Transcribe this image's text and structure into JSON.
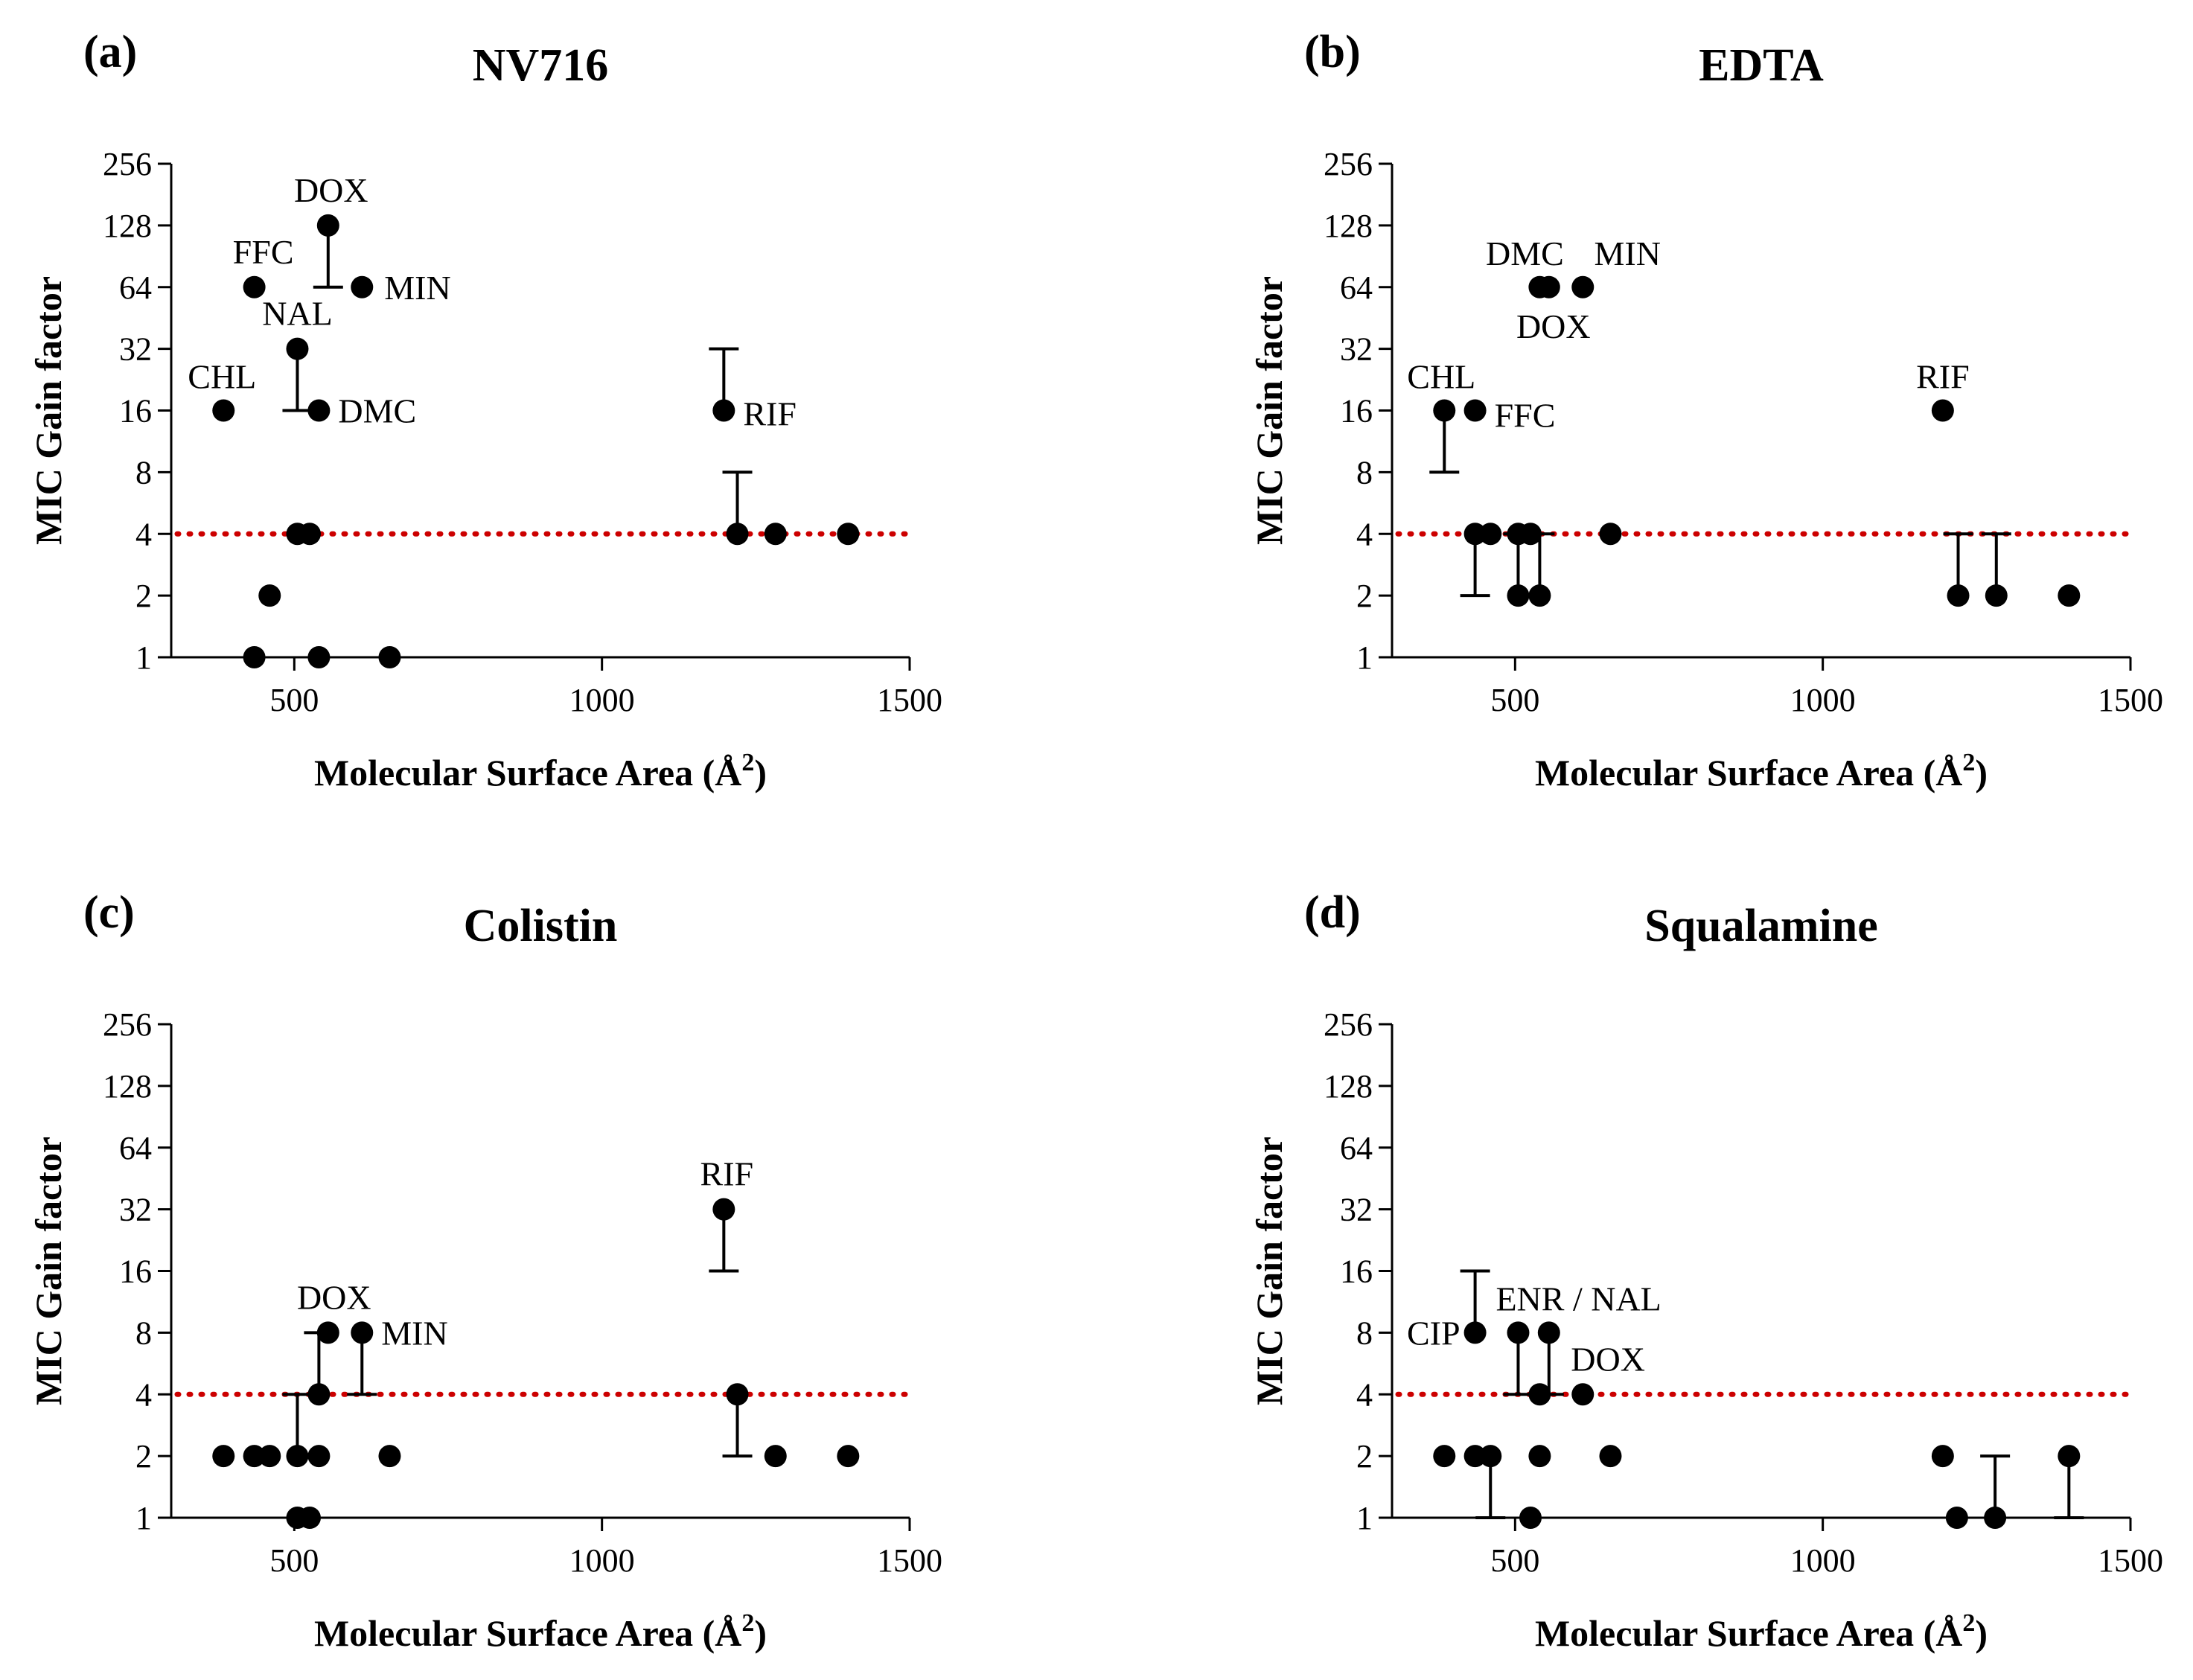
{
  "chart_data": [
    {
      "type": "scatter",
      "panel": "(a)",
      "title": "NV716",
      "xlabel": "Molecular Surface Area (Å",
      "xlabel_sup": "2",
      "xlabel_end": ")",
      "ylabel": "MIC Gain factor",
      "x_ticks": [
        500,
        1000,
        1500
      ],
      "y_ticks": [
        1,
        2,
        4,
        8,
        16,
        32,
        64,
        128,
        256
      ],
      "xlim": [
        300,
        1500
      ],
      "ylim": [
        1,
        256
      ],
      "y_scale": "log2",
      "threshold": 4,
      "threshold_color": "#cc0000",
      "points": [
        {
          "x": 385,
          "y": 16,
          "label": "CHL"
        },
        {
          "x": 435,
          "y": 64,
          "label": "FFC"
        },
        {
          "x": 555,
          "y": 128,
          "err_low": 64,
          "label": "DOX"
        },
        {
          "x": 610,
          "y": 64,
          "label": "MIN"
        },
        {
          "x": 505,
          "y": 32,
          "err_low": 16,
          "label": "NAL"
        },
        {
          "x": 540,
          "y": 16,
          "label": "DMC"
        },
        {
          "x": 1198,
          "y": 16,
          "err_high": 32,
          "label": "RIF"
        },
        {
          "x": 505,
          "y": 4
        },
        {
          "x": 525,
          "y": 4
        },
        {
          "x": 460,
          "y": 2
        },
        {
          "x": 435,
          "y": 1
        },
        {
          "x": 540,
          "y": 1
        },
        {
          "x": 655,
          "y": 1
        },
        {
          "x": 1220,
          "y": 4,
          "err_high": 8
        },
        {
          "x": 1282,
          "y": 4
        },
        {
          "x": 1400,
          "y": 4
        }
      ]
    },
    {
      "type": "scatter",
      "panel": "(b)",
      "title": "EDTA",
      "xlabel": "Molecular Surface Area (Å",
      "xlabel_sup": "2",
      "xlabel_end": ")",
      "ylabel": "MIC Gain factor",
      "x_ticks": [
        500,
        1000,
        1500
      ],
      "y_ticks": [
        1,
        2,
        4,
        8,
        16,
        32,
        64,
        128,
        256
      ],
      "xlim": [
        300,
        1500
      ],
      "ylim": [
        1,
        256
      ],
      "y_scale": "log2",
      "threshold": 4,
      "threshold_color": "#cc0000",
      "points": [
        {
          "x": 385,
          "y": 16,
          "err_low": 8,
          "label": "CHL"
        },
        {
          "x": 435,
          "y": 16,
          "label": "FFC"
        },
        {
          "x": 540,
          "y": 64,
          "label": "DMC"
        },
        {
          "x": 555,
          "y": 64,
          "label": "DOX"
        },
        {
          "x": 610,
          "y": 64,
          "label": "MIN"
        },
        {
          "x": 1195,
          "y": 16,
          "label": "RIF"
        },
        {
          "x": 435,
          "y": 4,
          "err_low": 2
        },
        {
          "x": 460,
          "y": 4
        },
        {
          "x": 505,
          "y": 4
        },
        {
          "x": 525,
          "y": 4
        },
        {
          "x": 505,
          "y": 2,
          "err_high": 4
        },
        {
          "x": 540,
          "y": 2,
          "err_high": 4
        },
        {
          "x": 655,
          "y": 4
        },
        {
          "x": 1220,
          "y": 2,
          "err_high": 4
        },
        {
          "x": 1282,
          "y": 2,
          "err_high": 4
        },
        {
          "x": 1400,
          "y": 2
        }
      ]
    },
    {
      "type": "scatter",
      "panel": "(c)",
      "title": "Colistin",
      "xlabel": "Molecular Surface Area (Å",
      "xlabel_sup": "2",
      "xlabel_end": ")",
      "ylabel": "MIC Gain factor",
      "x_ticks": [
        500,
        1000,
        1500
      ],
      "y_ticks": [
        1,
        2,
        4,
        8,
        16,
        32,
        64,
        128,
        256
      ],
      "xlim": [
        300,
        1500
      ],
      "ylim": [
        1,
        256
      ],
      "y_scale": "log2",
      "threshold": 4,
      "threshold_color": "#cc0000",
      "points": [
        {
          "x": 1198,
          "y": 32,
          "err_low": 16,
          "label": "RIF"
        },
        {
          "x": 555,
          "y": 8,
          "label": "DOX"
        },
        {
          "x": 610,
          "y": 8,
          "err_low": 4,
          "label": "MIN"
        },
        {
          "x": 540,
          "y": 4,
          "err_high": 8
        },
        {
          "x": 385,
          "y": 2
        },
        {
          "x": 435,
          "y": 2
        },
        {
          "x": 460,
          "y": 2
        },
        {
          "x": 505,
          "y": 2,
          "err_high": 4
        },
        {
          "x": 540,
          "y": 2
        },
        {
          "x": 655,
          "y": 2
        },
        {
          "x": 505,
          "y": 1
        },
        {
          "x": 525,
          "y": 1
        },
        {
          "x": 1220,
          "y": 4,
          "err_low": 2
        },
        {
          "x": 1282,
          "y": 2
        },
        {
          "x": 1400,
          "y": 2
        }
      ]
    },
    {
      "type": "scatter",
      "panel": "(d)",
      "title": "Squalamine",
      "xlabel": "Molecular Surface Area (Å",
      "xlabel_sup": "2",
      "xlabel_end": ")",
      "ylabel": "MIC Gain factor",
      "x_ticks": [
        500,
        1000,
        1500
      ],
      "y_ticks": [
        1,
        2,
        4,
        8,
        16,
        32,
        64,
        128,
        256
      ],
      "xlim": [
        300,
        1500
      ],
      "ylim": [
        1,
        256
      ],
      "y_scale": "log2",
      "threshold": 4,
      "threshold_color": "#cc0000",
      "points": [
        {
          "x": 435,
          "y": 8,
          "err_high": 16,
          "label": "CIP"
        },
        {
          "x": 505,
          "y": 8,
          "err_low": 4,
          "label": "ENR / NAL"
        },
        {
          "x": 555,
          "y": 8,
          "err_low": 4
        },
        {
          "x": 610,
          "y": 4,
          "label": "DOX"
        },
        {
          "x": 540,
          "y": 4
        },
        {
          "x": 385,
          "y": 2
        },
        {
          "x": 435,
          "y": 2
        },
        {
          "x": 460,
          "y": 2,
          "err_low": 1
        },
        {
          "x": 540,
          "y": 2
        },
        {
          "x": 655,
          "y": 2
        },
        {
          "x": 525,
          "y": 1
        },
        {
          "x": 1195,
          "y": 2
        },
        {
          "x": 1218,
          "y": 1
        },
        {
          "x": 1280,
          "y": 1,
          "err_high": 2
        },
        {
          "x": 1400,
          "y": 2,
          "err_low": 1
        }
      ]
    }
  ]
}
